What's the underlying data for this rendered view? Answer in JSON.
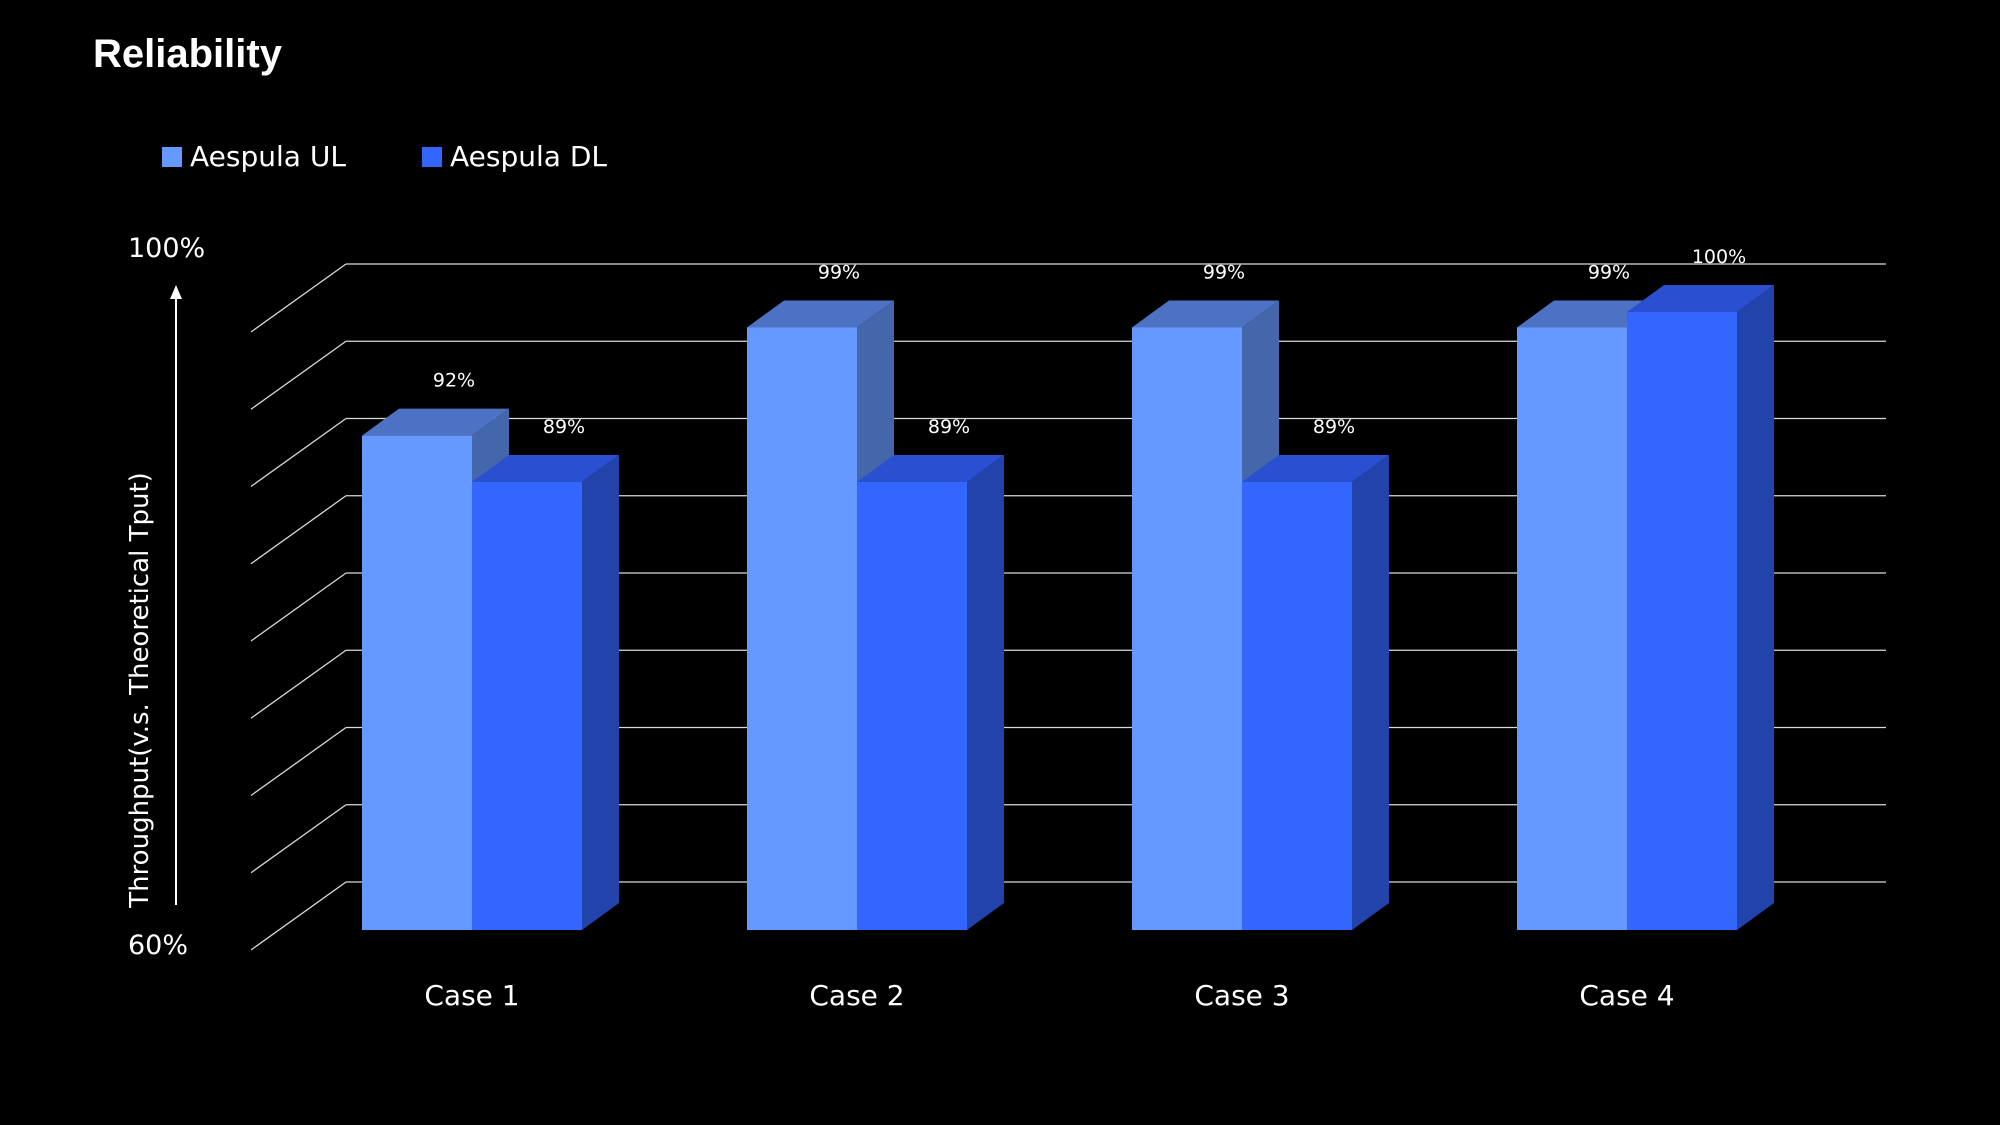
{
  "chart_data": {
    "type": "bar",
    "title": "Reliability",
    "ylabel": "Throughput(v.s. Theoretical Tput)",
    "xlabel": "",
    "ylim": [
      60,
      100
    ],
    "yticks": [
      "100%",
      "60%"
    ],
    "grid": true,
    "legend_position": "top-left",
    "categories": [
      "Case 1",
      "Case 2",
      "Case 3",
      "Case 4"
    ],
    "series": [
      {
        "name": "Aespula UL",
        "values": [
          92,
          99,
          99,
          99
        ],
        "labels": [
          "92%",
          "99%",
          "99%",
          "99%"
        ],
        "color": "#6699ff"
      },
      {
        "name": "Aespula DL",
        "values": [
          89,
          89,
          89,
          100
        ],
        "labels": [
          "89%",
          "89%",
          "89%",
          "100%"
        ],
        "color": "#3366ff"
      }
    ]
  },
  "colors": {
    "background": "#000000",
    "text": "#ffffff",
    "gridline": "#d9d9d9"
  }
}
